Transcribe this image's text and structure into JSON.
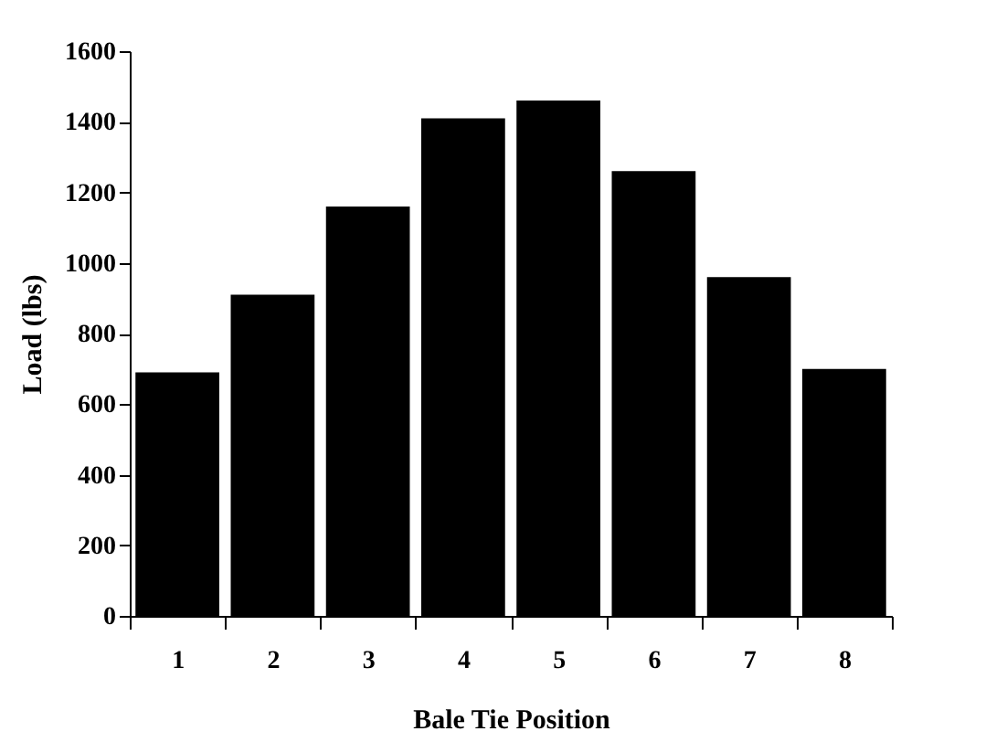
{
  "chart_data": {
    "type": "bar",
    "xlabel": "Bale Tie Position",
    "ylabel": "Load (lbs)",
    "categories": [
      "1",
      "2",
      "3",
      "4",
      "5",
      "6",
      "7",
      "8"
    ],
    "values": [
      690,
      910,
      1160,
      1410,
      1460,
      1260,
      960,
      700
    ],
    "color": "#000000",
    "ylim": [
      0,
      1600
    ],
    "yticks": [
      0,
      200,
      400,
      600,
      800,
      1000,
      1200,
      1400,
      1600
    ],
    "grid": false
  }
}
